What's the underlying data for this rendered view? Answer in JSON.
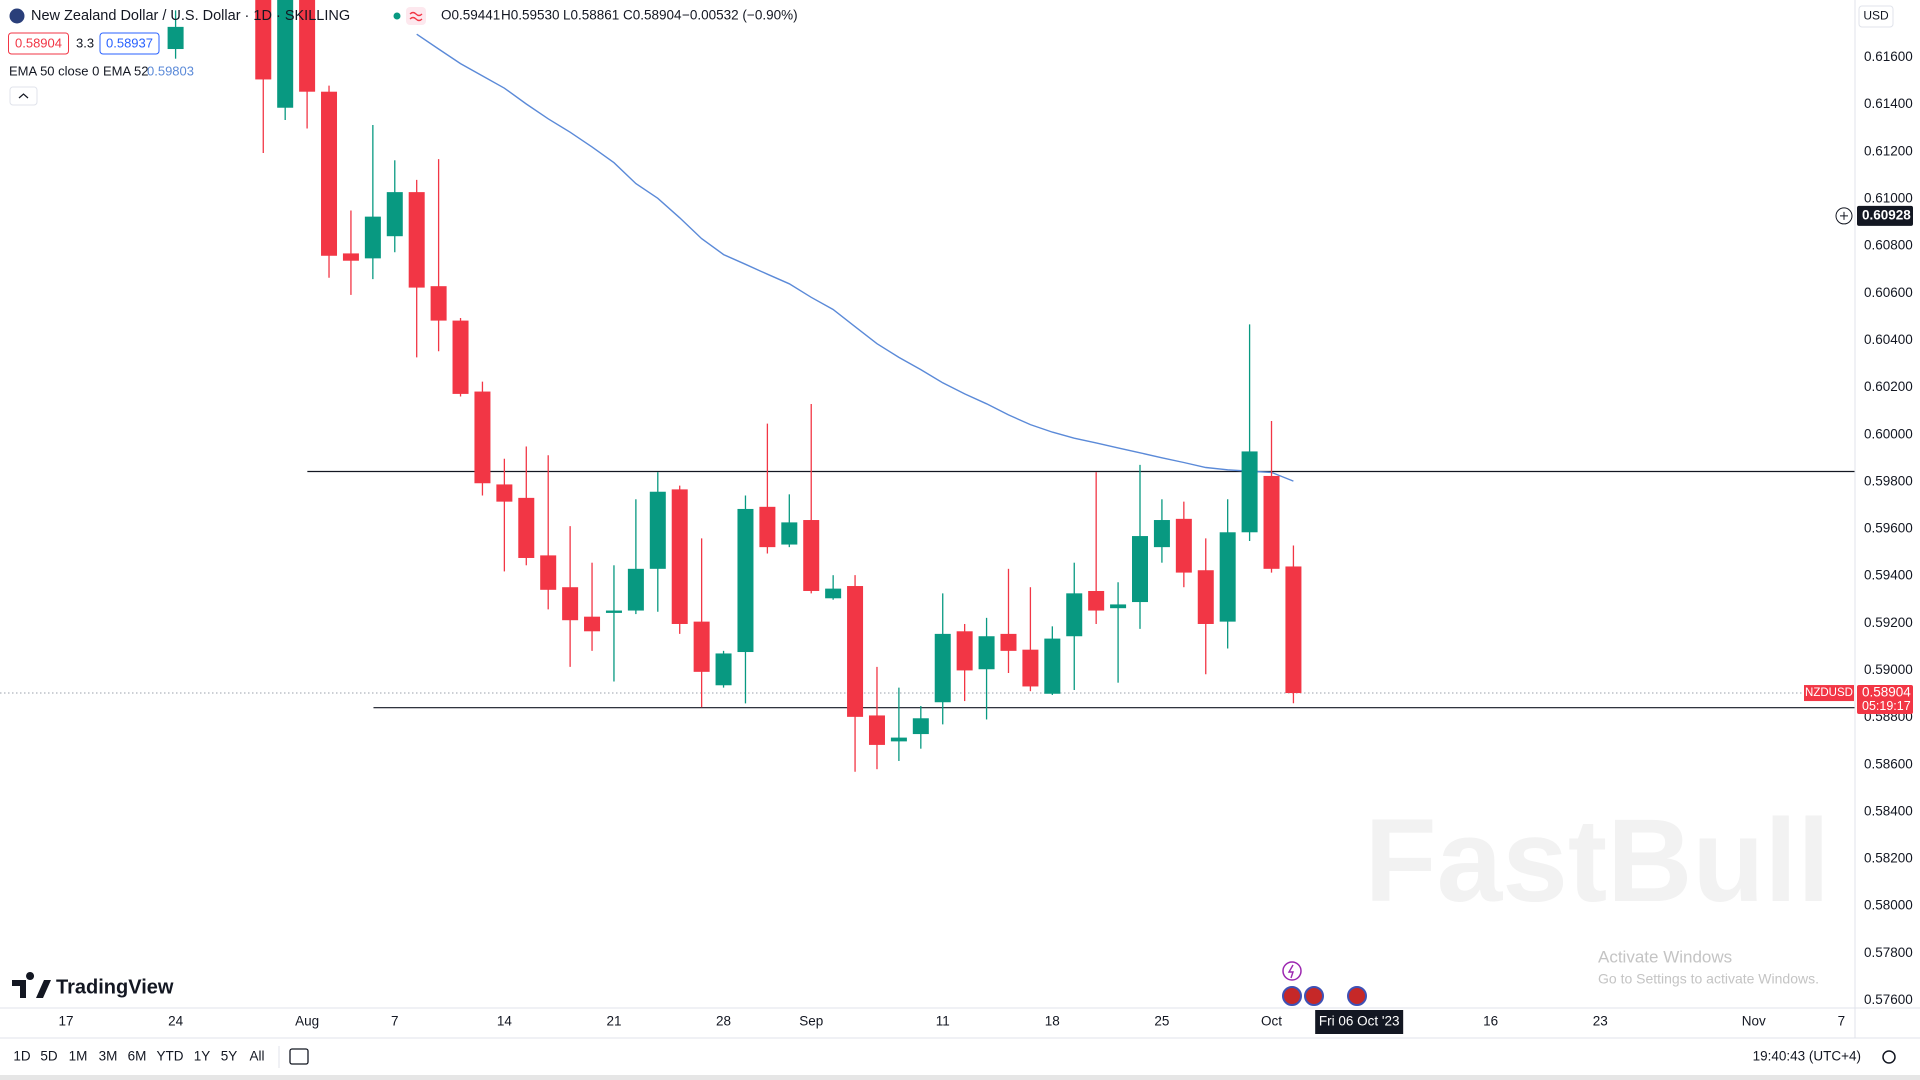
{
  "header": {
    "symbol": "New Zealand Dollar / U.S. Dollar · 1D · SKILLING",
    "open": "O0.59441",
    "high": "H0.59530",
    "low": "L0.58861",
    "close": "C0.58904",
    "change": "−0.00532 (−0.90%)",
    "spread": 3.3,
    "ask": 0.58937,
    "currency": "USD"
  },
  "chart_data": {
    "type": "candlestick",
    "categories": [
      "17",
      null,
      null,
      null,
      null,
      "24",
      null,
      null,
      null,
      null,
      null,
      "Aug",
      null,
      null,
      null,
      "7",
      null,
      null,
      null,
      null,
      "14",
      null,
      null,
      null,
      null,
      "21",
      null,
      null,
      null,
      null,
      "28",
      null,
      null,
      null,
      "Sep",
      null,
      null,
      null,
      null,
      null,
      "11",
      null,
      null,
      null,
      null,
      "18",
      null,
      null,
      null,
      null,
      "25",
      null,
      null,
      null,
      null,
      "Oct",
      null,
      null,
      null,
      null,
      null,
      null,
      null,
      null,
      null,
      "16",
      null,
      null,
      null,
      null,
      "23",
      null,
      null,
      null,
      null,
      null,
      null,
      "Nov",
      null,
      null,
      null,
      "7"
    ],
    "open": [
      null,
      null,
      null,
      null,
      null,
      0.61636,
      null,
      null,
      null,
      0.62,
      0.61387,
      0.6185,
      0.61455,
      0.60769,
      0.60748,
      0.60842,
      0.61029,
      0.6063,
      0.60484,
      0.60183,
      0.59789,
      0.59732,
      0.59488,
      0.59353,
      0.59228,
      0.59244,
      0.59254,
      0.59431,
      0.59768,
      0.59207,
      0.58937,
      0.59078,
      0.59694,
      0.59534,
      0.59638,
      0.59306,
      0.59358,
      0.58809,
      0.58699,
      0.5873,
      0.58865,
      0.59166,
      0.59005,
      0.59155,
      0.59088,
      0.58901,
      0.59145,
      0.59337,
      0.59264,
      0.5929,
      0.59523,
      0.59643,
      0.59425,
      0.59207,
      0.59586,
      0.59825,
      0.59441,
      null,
      null,
      null,
      null,
      null,
      null,
      null,
      null,
      null,
      null,
      null,
      null,
      null,
      null,
      null,
      null,
      null,
      null,
      null,
      null,
      null,
      null,
      null,
      null,
      null
    ],
    "high": [
      null,
      null,
      null,
      null,
      null,
      0.618,
      null,
      null,
      null,
      0.6205,
      0.6195,
      0.6195,
      0.61481,
      0.60951,
      0.61314,
      0.61164,
      0.61081,
      0.61169,
      0.60495,
      0.60225,
      0.59898,
      0.5995,
      0.59913,
      0.59612,
      0.59457,
      0.59446,
      0.59726,
      0.59841,
      0.59784,
      0.5956,
      0.59083,
      0.59742,
      0.60047,
      0.59747,
      0.6013,
      0.59404,
      0.59404,
      0.59015,
      0.58927,
      0.58849,
      0.59327,
      0.59197,
      0.59223,
      0.59431,
      0.59353,
      0.59187,
      0.59457,
      0.59841,
      0.59374,
      0.59872,
      0.59726,
      0.59716,
      0.5956,
      0.59726,
      0.60468,
      0.60058,
      0.5953,
      null,
      null,
      null,
      null,
      null,
      null,
      null,
      null,
      null,
      null,
      null,
      null,
      null,
      null,
      null,
      null,
      null,
      null,
      null,
      null,
      null,
      null,
      null,
      null,
      null
    ],
    "low": [
      null,
      null,
      null,
      null,
      null,
      0.61595,
      null,
      null,
      null,
      0.61195,
      0.61335,
      0.61299,
      0.60666,
      0.60593,
      0.6066,
      0.60774,
      0.60328,
      0.60354,
      0.60162,
      0.59742,
      0.5942,
      0.59446,
      0.59259,
      0.59015,
      0.59083,
      0.58953,
      0.59239,
      0.59249,
      0.59155,
      0.58844,
      0.58927,
      0.5886,
      0.59496,
      0.59523,
      0.59327,
      0.593,
      0.5857,
      0.58581,
      0.58616,
      0.58668,
      0.58771,
      0.5887,
      0.58792,
      0.58989,
      0.58912,
      0.58896,
      0.58917,
      0.59197,
      0.58948,
      0.59176,
      0.59457,
      0.59353,
      0.58984,
      0.59093,
      0.59549,
      0.59415,
      0.58861,
      null,
      null,
      null,
      null,
      null,
      null,
      null,
      null,
      null,
      null,
      null,
      null,
      null,
      null,
      null,
      null,
      null,
      null,
      null,
      null,
      null,
      null,
      null,
      null,
      null
    ],
    "close": [
      null,
      null,
      null,
      null,
      null,
      0.6173,
      null,
      null,
      null,
      0.61507,
      0.619,
      0.61455,
      0.60759,
      0.60738,
      0.60925,
      0.61029,
      0.60624,
      0.60484,
      0.60173,
      0.59794,
      0.59716,
      0.59477,
      0.59342,
      0.59213,
      0.59166,
      0.59254,
      0.59431,
      0.59758,
      0.59197,
      0.58994,
      0.59072,
      0.59685,
      0.59523,
      0.59628,
      0.59337,
      0.59347,
      0.58803,
      0.58684,
      0.58715,
      0.58797,
      0.59155,
      0.59,
      0.59145,
      0.59083,
      0.58932,
      0.59135,
      0.59327,
      0.59254,
      0.5928,
      0.5957,
      0.59638,
      0.59415,
      0.59197,
      0.59586,
      0.59929,
      0.59431,
      0.58904,
      null,
      null,
      null,
      null,
      null,
      null,
      null,
      null,
      null,
      null,
      null,
      null,
      null,
      null,
      null,
      null,
      null,
      null,
      null,
      null,
      null,
      null,
      null,
      null,
      null
    ],
    "ema": {
      "name": "EMA 50 close 0 EMA 52",
      "color": "#5b8ad8",
      "values": [
        null,
        null,
        null,
        null,
        null,
        null,
        null,
        null,
        null,
        null,
        null,
        null,
        null,
        null,
        null,
        null,
        0.61699,
        0.61636,
        0.61574,
        0.61522,
        0.6147,
        0.61403,
        0.6134,
        0.61283,
        0.61221,
        0.61154,
        0.61065,
        0.61003,
        0.6092,
        0.60832,
        0.60764,
        0.60723,
        0.60681,
        0.6064,
        0.60583,
        0.60531,
        0.60458,
        0.60386,
        0.60328,
        0.60276,
        0.6022,
        0.60173,
        0.60131,
        0.60084,
        0.60043,
        0.60011,
        0.59985,
        0.59965,
        0.59944,
        0.59923,
        0.59902,
        0.59882,
        0.59861,
        0.59851,
        0.59845,
        0.5984,
        0.59803,
        null,
        null,
        null,
        null,
        null,
        null,
        null,
        null,
        null,
        null,
        null,
        null,
        null,
        null,
        null,
        null,
        null,
        null,
        null,
        null,
        null,
        null,
        null,
        null,
        null
      ]
    },
    "up_color": "#089981",
    "down_color": "#f23645",
    "levels": [
      0.59844,
      0.58842
    ],
    "ylim": [
      0.57569,
      0.61844
    ],
    "yticks": [
      {
        "value": 0.616,
        "label": "0.61600"
      },
      {
        "value": 0.614,
        "label": "0.61400"
      },
      {
        "value": 0.612,
        "label": "0.61200"
      },
      {
        "value": 0.61,
        "label": "0.61000"
      },
      {
        "value": 0.608,
        "label": "0.60800"
      },
      {
        "value": 0.606,
        "label": "0.60600"
      },
      {
        "value": 0.604,
        "label": "0.60400"
      },
      {
        "value": 0.602,
        "label": "0.60200"
      },
      {
        "value": 0.6,
        "label": "0.60000"
      },
      {
        "value": 0.598,
        "label": "0.59800"
      },
      {
        "value": 0.596,
        "label": "0.59600"
      },
      {
        "value": 0.594,
        "label": "0.59400"
      },
      {
        "value": 0.592,
        "label": "0.59200"
      },
      {
        "value": 0.59,
        "label": "0.59000"
      },
      {
        "value": 0.588,
        "label": "0.58800"
      },
      {
        "value": 0.586,
        "label": "0.58600"
      },
      {
        "value": 0.584,
        "label": "0.58400"
      },
      {
        "value": 0.582,
        "label": "0.58200"
      },
      {
        "value": 0.58,
        "label": "0.58000"
      },
      {
        "value": 0.578,
        "label": "0.57800"
      },
      {
        "value": 0.576,
        "label": "0.57600"
      }
    ],
    "grid": false,
    "price_tag": "NZDUSD",
    "countdown": "05:19:17",
    "crosshair_price": 0.60928,
    "crosshair_date": "Fri 06 Oct '23"
  },
  "brand": "TradingView",
  "watermark": "FastBull",
  "windows_notice": {
    "title": "Activate Windows",
    "subtitle": "Go to Settings to activate Windows."
  },
  "toolbar": {
    "ranges": [
      "1D",
      "5D",
      "1M",
      "3M",
      "6M",
      "YTD",
      "1Y",
      "5Y",
      "All"
    ],
    "clock": "19:40:43 (UTC+4)"
  }
}
